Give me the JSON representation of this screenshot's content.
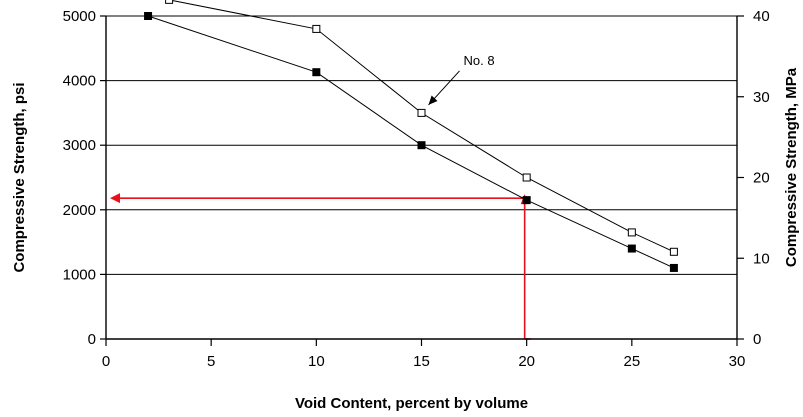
{
  "chart_data": {
    "type": "line",
    "xlabel": "Void Content, percent by volume",
    "ylabel": "Compressive Strength, psi",
    "ylabel_right": "Compressive Strength, MPa",
    "xlim": [
      0,
      30
    ],
    "ylim": [
      0,
      5000
    ],
    "ylim_right": [
      0,
      40
    ],
    "x_ticks": [
      0,
      5,
      10,
      15,
      20,
      25,
      30
    ],
    "y_ticks": [
      0,
      1000,
      2000,
      3000,
      4000,
      5000
    ],
    "y_ticks_right": [
      0,
      10,
      20,
      30,
      40
    ],
    "grid": "horizontal",
    "series": [
      {
        "marker": "filled-square",
        "x": [
          2,
          10,
          15,
          20,
          25,
          27
        ],
        "y": [
          5000,
          4130,
          3000,
          2150,
          1400,
          1100
        ]
      },
      {
        "name": "No. 8",
        "marker": "open-square",
        "x": [
          3,
          10,
          15,
          20,
          25,
          27
        ],
        "y": [
          5250,
          4800,
          3500,
          2500,
          1650,
          1350
        ]
      }
    ],
    "annotations": [
      {
        "text": "No. 8",
        "target": {
          "x": 15,
          "y": 3500
        }
      }
    ],
    "reference_lines": {
      "x": 20,
      "y": 2180,
      "color": "#e8101a"
    }
  }
}
